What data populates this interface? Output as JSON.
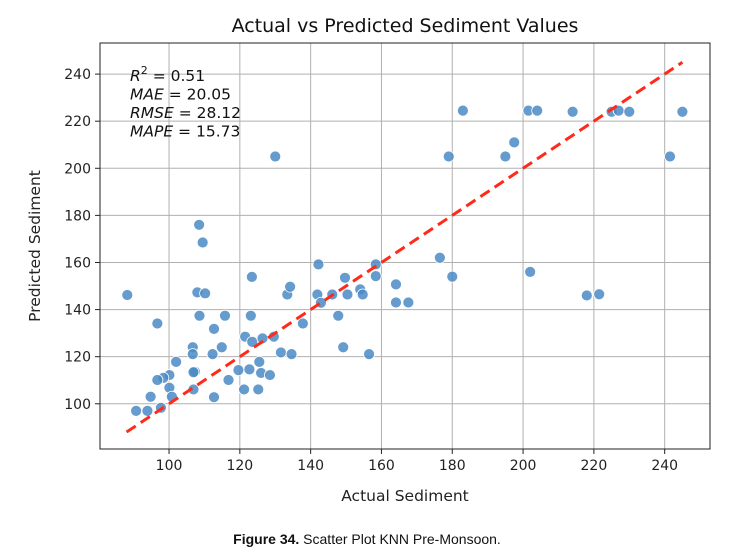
{
  "chart_data": {
    "type": "scatter",
    "title": "Actual vs Predicted Sediment Values",
    "xlabel": "Actual Sediment",
    "ylabel": "Predicted Sediment",
    "xlim": [
      80.5,
      252.8
    ],
    "ylim": [
      80.8,
      253.2
    ],
    "xticks": [
      100,
      120,
      140,
      160,
      180,
      200,
      220,
      240
    ],
    "yticks": [
      100,
      120,
      140,
      160,
      180,
      200,
      220,
      240
    ],
    "grid": true,
    "point_color": "#4a8ac4",
    "reference_line": {
      "style": "dashed",
      "color": "#ff2a1a",
      "x": [
        88,
        245
      ],
      "y": [
        88,
        245
      ]
    },
    "stats": [
      {
        "name": "R",
        "sup": "2",
        "value": " = 0.51"
      },
      {
        "name": "MAE",
        "sup": "",
        "value": " = 20.05"
      },
      {
        "name": "RMSE",
        "sup": "",
        "value": " = 28.12"
      },
      {
        "name": "MAPE",
        "sup": "",
        "value": " = 15.73"
      }
    ],
    "points": [
      [
        130,
        205
      ],
      [
        108.5,
        176
      ],
      [
        109.5,
        168.5
      ],
      [
        179,
        205
      ],
      [
        183,
        224.5
      ],
      [
        201.5,
        224.5
      ],
      [
        204,
        224.5
      ],
      [
        214,
        224
      ],
      [
        195,
        205
      ],
      [
        197.5,
        211
      ],
      [
        225,
        224
      ],
      [
        227,
        224.5
      ],
      [
        230,
        224
      ],
      [
        241.5,
        205
      ],
      [
        245,
        224
      ],
      [
        176.5,
        162
      ],
      [
        180,
        154
      ],
      [
        202,
        156
      ],
      [
        218,
        146
      ],
      [
        221.5,
        146.5
      ],
      [
        88.2,
        146.2
      ],
      [
        96.7,
        134.1
      ],
      [
        108,
        147.3
      ],
      [
        110.2,
        146.9
      ],
      [
        108.6,
        137.4
      ],
      [
        115.8,
        137.4
      ],
      [
        112.7,
        131.8
      ],
      [
        123.4,
        153.9
      ],
      [
        123.1,
        137.4
      ],
      [
        121.5,
        128.5
      ],
      [
        123.5,
        126.3
      ],
      [
        126.4,
        127.8
      ],
      [
        129.6,
        128.5
      ],
      [
        133.4,
        146.4
      ],
      [
        134.2,
        149.7
      ],
      [
        142.2,
        159.2
      ],
      [
        141.9,
        146.4
      ],
      [
        142.9,
        142.9
      ],
      [
        146.1,
        146.4
      ],
      [
        149.7,
        153.5
      ],
      [
        150.4,
        146.4
      ],
      [
        154,
        148.6
      ],
      [
        154.7,
        146.4
      ],
      [
        158.4,
        159.2
      ],
      [
        158.4,
        154.2
      ],
      [
        164.1,
        150.7
      ],
      [
        164.1,
        143
      ],
      [
        167.6,
        143
      ],
      [
        137.8,
        134.1
      ],
      [
        147.8,
        137.4
      ],
      [
        149.2,
        124
      ],
      [
        156.5,
        121.1
      ],
      [
        131.6,
        121.8
      ],
      [
        134.6,
        121.1
      ],
      [
        114.9,
        124
      ],
      [
        106.7,
        124
      ],
      [
        106.7,
        121.1
      ],
      [
        112.3,
        121.1
      ],
      [
        102,
        117.8
      ],
      [
        107.3,
        113.6
      ],
      [
        106.9,
        113.4
      ],
      [
        119.6,
        114.3
      ],
      [
        122.7,
        114.6
      ],
      [
        126,
        113.1
      ],
      [
        128.5,
        112.2
      ],
      [
        125.5,
        117.8
      ],
      [
        116.8,
        110.1
      ],
      [
        121.2,
        106.1
      ],
      [
        125.2,
        106.1
      ],
      [
        106.9,
        106.1
      ],
      [
        112.7,
        102.8
      ],
      [
        100.1,
        112.2
      ],
      [
        98.4,
        111
      ],
      [
        96.7,
        110.1
      ],
      [
        100.1,
        106.8
      ],
      [
        100.8,
        103
      ],
      [
        94.8,
        103
      ],
      [
        97.7,
        98.3
      ],
      [
        90.7,
        97
      ],
      [
        93.9,
        97
      ]
    ]
  },
  "caption": {
    "label": "Figure 34.",
    "text": " Scatter Plot KNN Pre-Monsoon."
  }
}
